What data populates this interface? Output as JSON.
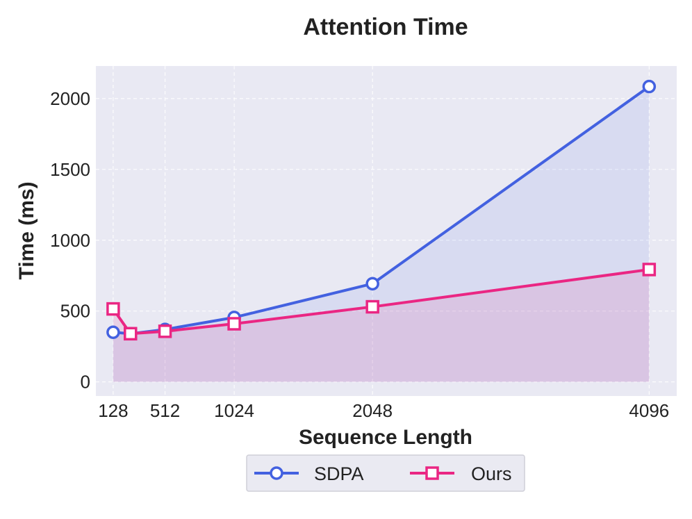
{
  "chart_data": {
    "type": "line",
    "title": "Attention Time",
    "xlabel": "Sequence Length",
    "ylabel": "Time (ms)",
    "x": [
      128,
      256,
      512,
      1024,
      2048,
      4096
    ],
    "xticks": [
      128,
      512,
      1024,
      2048,
      4096
    ],
    "yticks": [
      0,
      500,
      1000,
      1500,
      2000
    ],
    "xlim": [
      0,
      4300
    ],
    "ylim": [
      -100,
      2230
    ],
    "grid": true,
    "legend_position": "bottom-center",
    "series": [
      {
        "name": "SDPA",
        "values": [
          350,
          340,
          370,
          455,
          693,
          2085
        ],
        "color": "#4361e0",
        "marker": "circle",
        "fill": "area"
      },
      {
        "name": "Ours",
        "values": [
          515,
          340,
          357,
          410,
          530,
          793
        ],
        "color": "#ea2683",
        "marker": "square",
        "fill": "area"
      }
    ]
  }
}
